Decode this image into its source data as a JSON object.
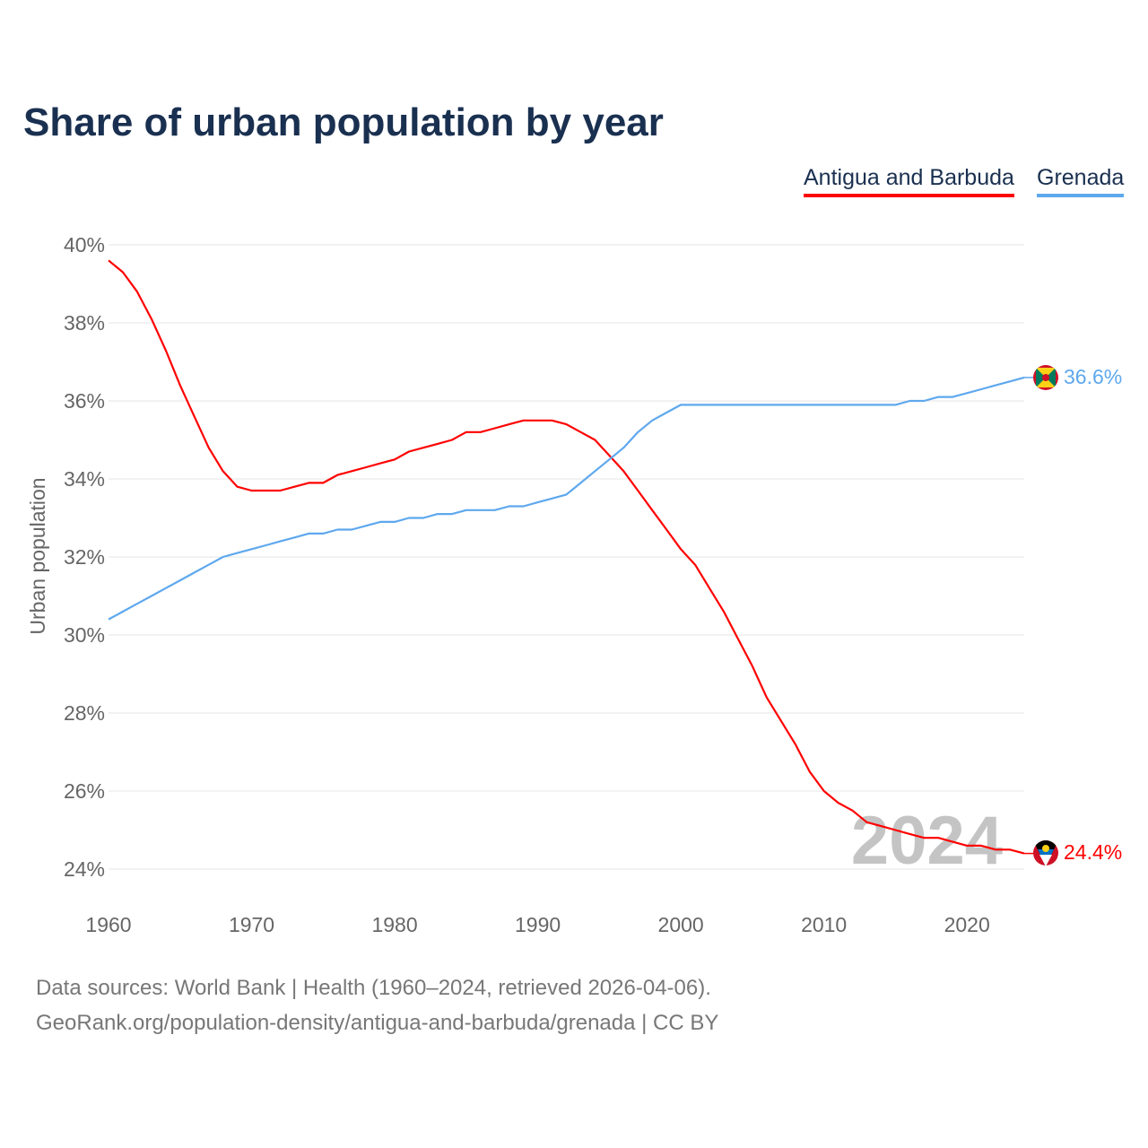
{
  "chart_data": {
    "type": "line",
    "title": "Share of urban population by year",
    "xlabel": "",
    "ylabel": "Urban population",
    "ylim": [
      24,
      40
    ],
    "xlim": [
      1960,
      2024
    ],
    "yticks": [
      "24%",
      "26%",
      "28%",
      "30%",
      "32%",
      "34%",
      "36%",
      "38%",
      "40%"
    ],
    "ytick_values": [
      24,
      26,
      28,
      30,
      32,
      34,
      36,
      38,
      40
    ],
    "xticks": [
      "1960",
      "1970",
      "1980",
      "1990",
      "2000",
      "2010",
      "2020"
    ],
    "xtick_values": [
      1960,
      1970,
      1980,
      1990,
      2000,
      2010,
      2020
    ],
    "grid": true,
    "legend_position": "top-right",
    "year_watermark": "2024",
    "x": [
      1960,
      1961,
      1962,
      1963,
      1964,
      1965,
      1966,
      1967,
      1968,
      1969,
      1970,
      1971,
      1972,
      1973,
      1974,
      1975,
      1976,
      1977,
      1978,
      1979,
      1980,
      1981,
      1982,
      1983,
      1984,
      1985,
      1986,
      1987,
      1988,
      1989,
      1990,
      1991,
      1992,
      1993,
      1994,
      1995,
      1996,
      1997,
      1998,
      1999,
      2000,
      2001,
      2002,
      2003,
      2004,
      2005,
      2006,
      2007,
      2008,
      2009,
      2010,
      2011,
      2012,
      2013,
      2014,
      2015,
      2016,
      2017,
      2018,
      2019,
      2020,
      2021,
      2022,
      2023,
      2024
    ],
    "series": [
      {
        "name": "Antigua and Barbuda",
        "color": "#ff0000",
        "end_label": "24.4%",
        "values": [
          39.6,
          39.3,
          38.8,
          38.1,
          37.3,
          36.4,
          35.6,
          34.8,
          34.2,
          33.8,
          33.7,
          33.7,
          33.7,
          33.8,
          33.9,
          33.9,
          34.1,
          34.2,
          34.3,
          34.4,
          34.5,
          34.7,
          34.8,
          34.9,
          35.0,
          35.2,
          35.2,
          35.3,
          35.4,
          35.5,
          35.5,
          35.5,
          35.4,
          35.2,
          35.0,
          34.6,
          34.2,
          33.7,
          33.2,
          32.7,
          32.2,
          31.8,
          31.2,
          30.6,
          29.9,
          29.2,
          28.4,
          27.8,
          27.2,
          26.5,
          26.0,
          25.7,
          25.5,
          25.2,
          25.1,
          25.0,
          24.9,
          24.8,
          24.8,
          24.7,
          24.6,
          24.6,
          24.5,
          24.5,
          24.4
        ]
      },
      {
        "name": "Grenada",
        "color": "#5ea8ee",
        "end_label": "36.6%",
        "values": [
          30.4,
          30.6,
          30.8,
          31.0,
          31.2,
          31.4,
          31.6,
          31.8,
          32.0,
          32.1,
          32.2,
          32.3,
          32.4,
          32.5,
          32.6,
          32.6,
          32.7,
          32.7,
          32.8,
          32.9,
          32.9,
          33.0,
          33.0,
          33.1,
          33.1,
          33.2,
          33.2,
          33.2,
          33.3,
          33.3,
          33.4,
          33.5,
          33.6,
          33.9,
          34.2,
          34.5,
          34.8,
          35.2,
          35.5,
          35.7,
          35.9,
          35.9,
          35.9,
          35.9,
          35.9,
          35.9,
          35.9,
          35.9,
          35.9,
          35.9,
          35.9,
          35.9,
          35.9,
          35.9,
          35.9,
          35.9,
          36.0,
          36.0,
          36.1,
          36.1,
          36.2,
          36.3,
          36.4,
          36.5,
          36.6
        ]
      }
    ]
  },
  "footer": {
    "line1": "Data sources: World Bank | Health (1960–2024, retrieved 2026-04-06).",
    "line2": "GeoRank.org/population-density/antigua-and-barbuda/grenada | CC BY"
  }
}
